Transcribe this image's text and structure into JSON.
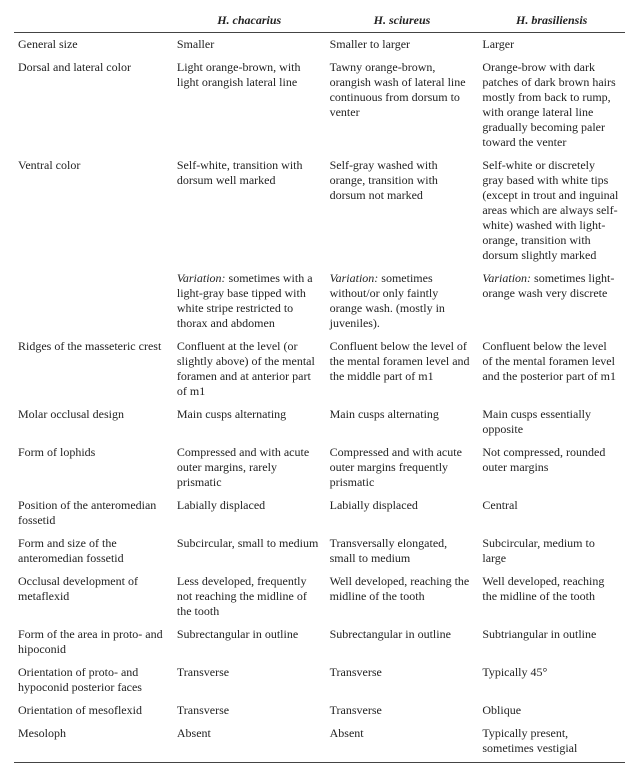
{
  "header": {
    "blank": "",
    "species": [
      "H. chacarius",
      "H. sciureus",
      "H. brasiliensis"
    ]
  },
  "variation_prefix": "Variation:",
  "rows": [
    {
      "label": "General size",
      "c1": "Smaller",
      "c2": "Smaller to larger",
      "c3": "Larger"
    },
    {
      "label": "Dorsal and lateral color",
      "c1": "Light orange-brown, with light orangish lateral line",
      "c2": "Tawny orange-brown, orangish wash of lateral line continuous from dorsum to venter",
      "c3": "Orange-brow with dark patches of dark brown hairs mostly from back to rump, with orange lateral line gradually becoming paler toward the venter"
    },
    {
      "label": "Ventral color",
      "c1": "Self-white, transition with dorsum well marked",
      "c2": "Self-gray washed with orange, transition with dorsum not marked",
      "c3": "Self-white or discretely gray based with white tips (except in trout and inguinal areas which are always self-white) washed with light-orange, transition with dorsum slightly marked",
      "variation": {
        "c1": " sometimes with a light-gray base tipped with white stripe restricted to thorax and abdomen",
        "c2": " sometimes without/or only faintly orange wash. (mostly in juveniles).",
        "c3": " sometimes light-orange wash very discrete"
      }
    },
    {
      "label": "Ridges of the masseteric crest",
      "c1": "Confluent at the level (or slightly above) of the mental foramen and at anterior part of m1",
      "c2": "Confluent below the level of the mental foramen level and the middle part of m1",
      "c3": "Confluent below the level of the mental foramen level and the posterior part of m1"
    },
    {
      "label": "Molar occlusal design",
      "c1": "Main cusps alternating",
      "c2": "Main cusps alternating",
      "c3": "Main cusps essentially opposite"
    },
    {
      "label": "Form of lophids",
      "c1": "Compressed and with acute outer margins, rarely prismatic",
      "c2": "Compressed and with acute outer margins frequently prismatic",
      "c3": "Not compressed, rounded outer margins"
    },
    {
      "label": "Position of the anteromedian fossetid",
      "c1": "Labially displaced",
      "c2": "Labially displaced",
      "c3": "Central"
    },
    {
      "label": "Form and size of the anteromedian fossetid",
      "c1": "Subcircular, small to medium",
      "c2": "Transversally elongated, small to medium",
      "c3": "Subcircular, medium to large"
    },
    {
      "label": "Occlusal development of metaflexid",
      "c1": "Less developed, frequently not reaching the midline of the tooth",
      "c2": "Well developed, reaching the midline of the tooth",
      "c3": "Well developed, reaching the midline of the tooth"
    },
    {
      "label": "Form of the area in proto- and hipoconid",
      "c1": "Subrectangular in outline",
      "c2": "Subrectangular in outline",
      "c3": "Subtriangular in outline"
    },
    {
      "label": "Orientation of proto- and hypoconid posterior faces",
      "c1": "Transverse",
      "c2": "Transverse",
      "c3": "Typically 45°"
    },
    {
      "label": "Orientation of mesoflexid",
      "c1": "Transverse",
      "c2": "Transverse",
      "c3": "Oblique"
    },
    {
      "label": "Mesoloph",
      "c1": "Absent",
      "c2": "Absent",
      "c3": "Typically present, sometimes vestigial"
    }
  ]
}
